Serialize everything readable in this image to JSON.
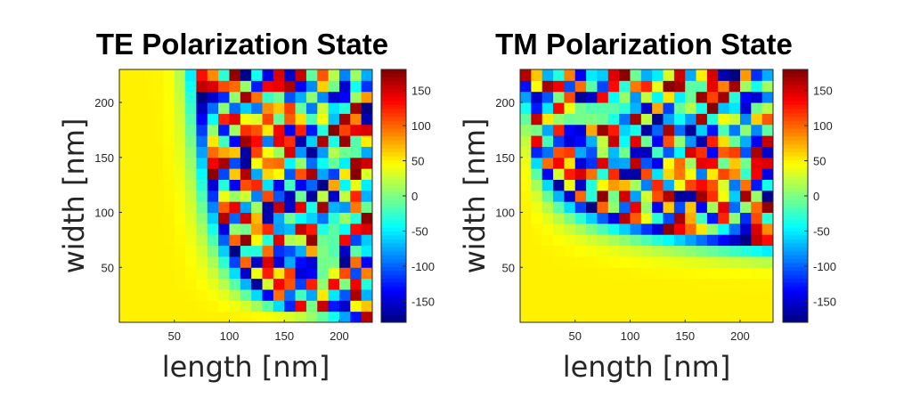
{
  "chart_data": [
    {
      "type": "heatmap",
      "title": "TE Polarization State",
      "xlabel": "length [nm]",
      "ylabel": "width [nm]",
      "xticks": [
        50,
        100,
        150,
        200
      ],
      "yticks": [
        50,
        100,
        150,
        200
      ],
      "xlim": [
        0,
        230
      ],
      "ylim": [
        0,
        230
      ],
      "grid": {
        "nx": 23,
        "ny": 23,
        "step": 10
      },
      "colorbar": {
        "min": -180,
        "max": 180,
        "ticks": [
          150,
          100,
          50,
          0,
          -50,
          -100,
          -150
        ],
        "colormap": "jet"
      },
      "field": {
        "k": 4.1,
        "p": 1.75,
        "base": 50,
        "span": 400,
        "axis": "x"
      }
    },
    {
      "type": "heatmap",
      "title": "TM Polarization State",
      "xlabel": "length [nm]",
      "ylabel": "width [nm]",
      "xticks": [
        50,
        100,
        150,
        200
      ],
      "yticks": [
        50,
        100,
        150,
        200
      ],
      "xlim": [
        0,
        230
      ],
      "ylim": [
        0,
        230
      ],
      "grid": {
        "nx": 23,
        "ny": 23,
        "step": 10
      },
      "colorbar": {
        "min": -180,
        "max": 180,
        "ticks": [
          150,
          100,
          50,
          0,
          -50,
          -100,
          -150
        ],
        "colormap": "jet"
      },
      "field": {
        "k": 4.1,
        "p": 1.75,
        "base": 50,
        "span": 400,
        "axis": "y"
      }
    }
  ]
}
